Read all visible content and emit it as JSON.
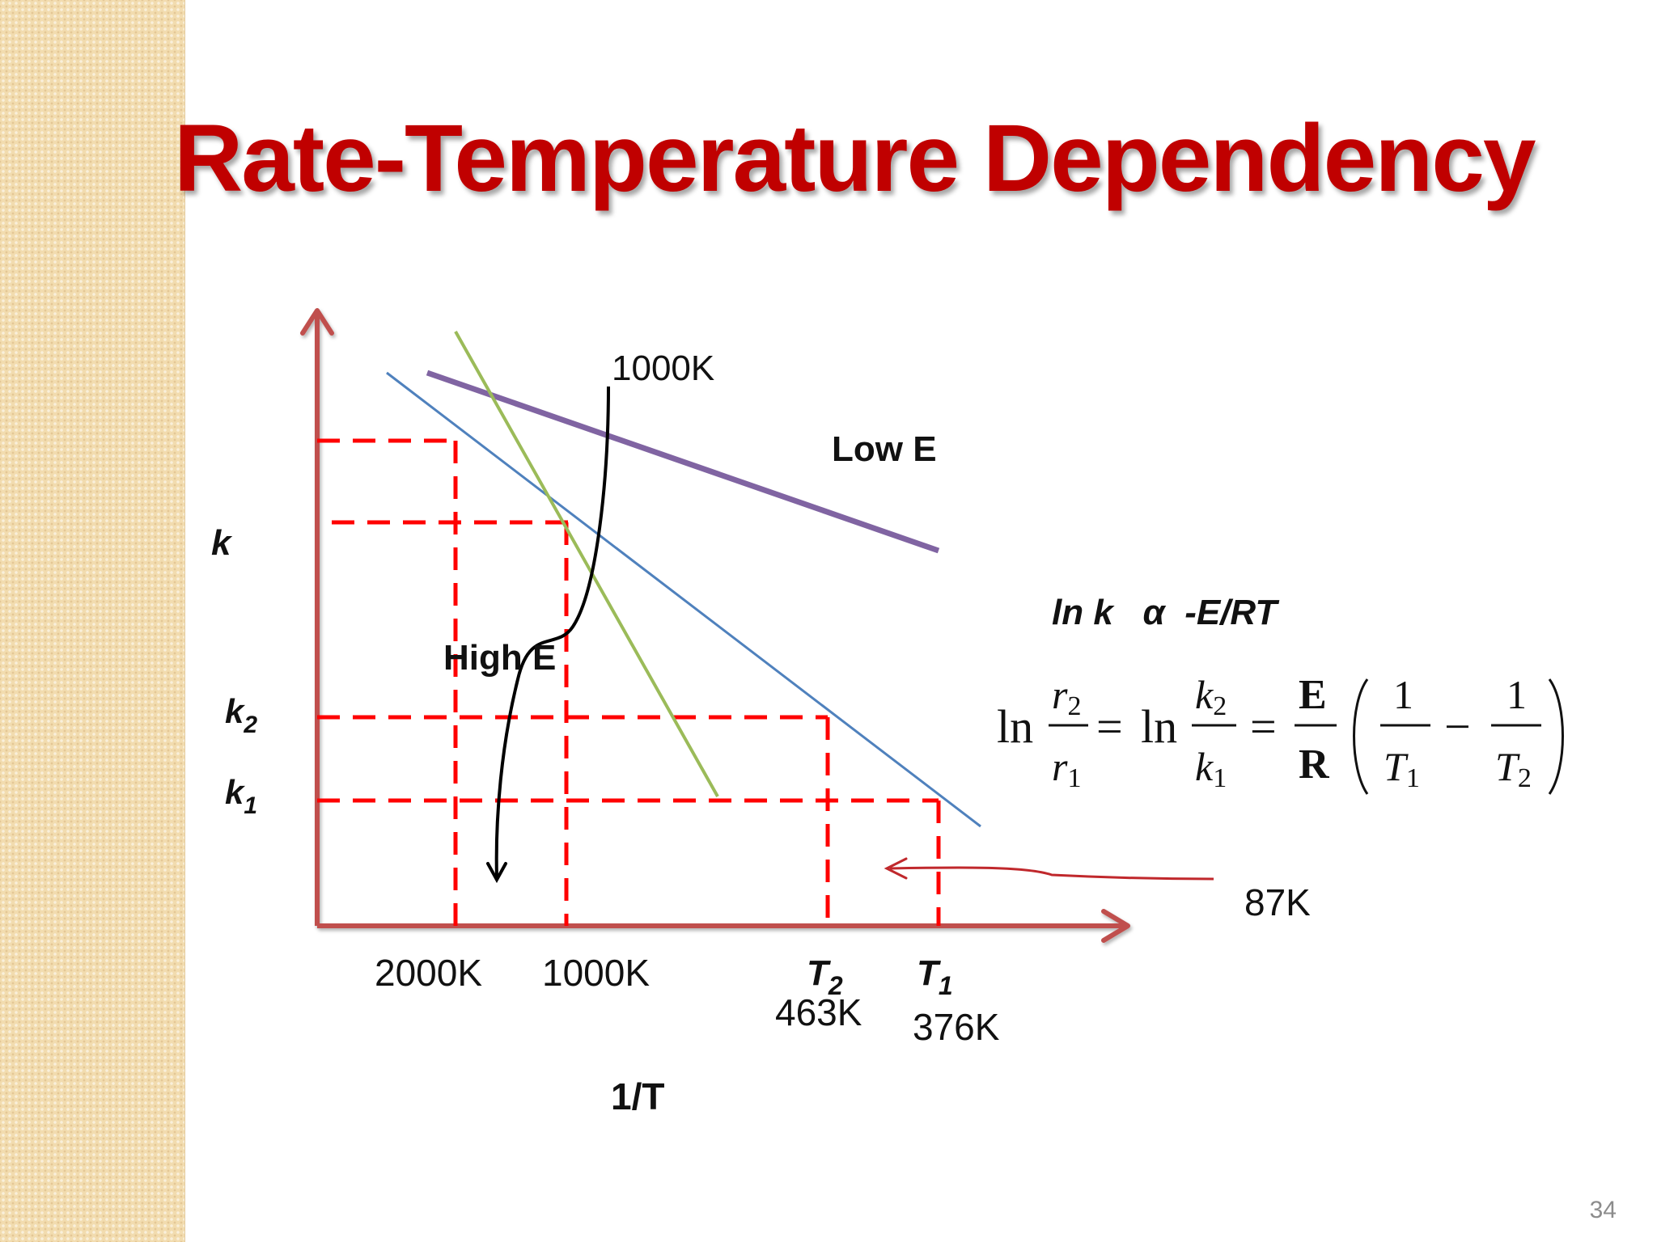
{
  "title": "Rate-Temperature Dependency",
  "labels": {
    "y_axis": "k",
    "x_axis": "1/T",
    "k2": "k",
    "k2_sub": "2",
    "k1": "k",
    "k1_sub": "1",
    "low_e": "Low E",
    "high_e": "High E",
    "temp_1000k_top": "1000K",
    "temp_2000k": "2000K",
    "temp_1000k": "1000K",
    "t2": "T",
    "t2_sub": "2",
    "t2_value": "463K",
    "t1": "T",
    "t1_sub": "1",
    "t1_value": "376K",
    "temp_87k": "87K"
  },
  "relation": "ln k   α  -E/RT",
  "equation": {
    "ln": "ln",
    "r2": "r",
    "r2_sub": "2",
    "r1": "r",
    "r1_sub": "1",
    "k2": "k",
    "k2_sub": "2",
    "k1": "k",
    "k1_sub": "1",
    "equals": "=",
    "E": "E",
    "R": "R",
    "one": "1",
    "minus": "−",
    "T1": "T",
    "T1_sub": "1",
    "T2": "T",
    "T2_sub": "2"
  },
  "colors": {
    "title": "#c00000",
    "axes": "#c0504d",
    "low_e_line": "#8064a2",
    "blue_line": "#4f81bd",
    "green_line": "#9bbb59",
    "dashed": "#ff0000",
    "red_arrow": "#c0282c"
  },
  "page_number": "34"
}
